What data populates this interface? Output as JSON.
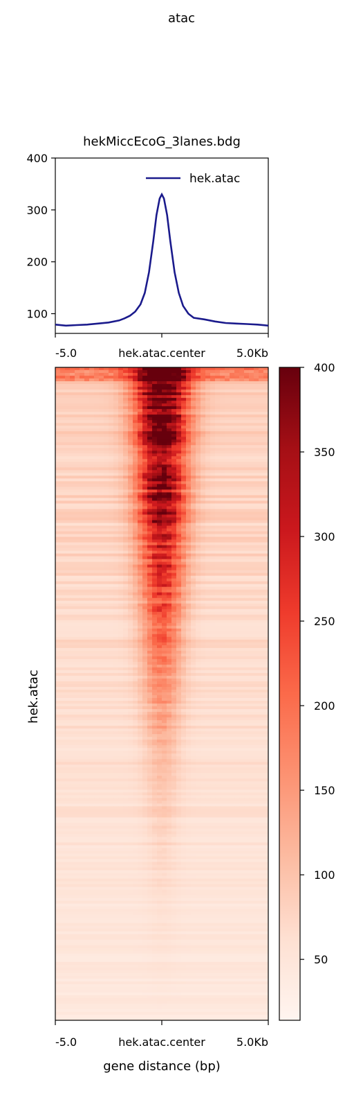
{
  "suptitle": "atac",
  "chart_data": [
    {
      "type": "line",
      "title": "hekMiccEcoG_3lanes.bdg",
      "xlabel": "",
      "ylabel": "",
      "ylim": [
        62,
        400
      ],
      "yticks": [
        100,
        200,
        300,
        400
      ],
      "xticks": [
        "-5.0",
        "hek.atac.center",
        "5.0Kb"
      ],
      "xlim": [
        -5000,
        5000
      ],
      "legend_position": "top-right",
      "series": [
        {
          "name": "hek.atac",
          "color": "#1a1a8c",
          "x": [
            -5000,
            -4500,
            -4000,
            -3500,
            -3000,
            -2500,
            -2000,
            -1750,
            -1500,
            -1250,
            -1000,
            -800,
            -600,
            -400,
            -250,
            -100,
            0,
            100,
            250,
            400,
            600,
            800,
            1000,
            1250,
            1500,
            2000,
            2500,
            3000,
            3500,
            4000,
            4500,
            5000
          ],
          "values": [
            79,
            77,
            78,
            79,
            81,
            83,
            87,
            91,
            96,
            104,
            118,
            140,
            180,
            240,
            290,
            322,
            330,
            322,
            290,
            240,
            180,
            140,
            115,
            100,
            92,
            89,
            85,
            82,
            81,
            80,
            79,
            77
          ]
        }
      ]
    },
    {
      "type": "heatmap",
      "title": "",
      "ylabel": "hek.atac",
      "xlabel": "gene distance (bp)",
      "xticks": [
        "-5.0",
        "hek.atac.center",
        "5.0Kb"
      ],
      "colormap": "Reds",
      "colorbar": {
        "min": 14,
        "max": 400,
        "ticks": [
          50,
          100,
          150,
          200,
          250,
          300,
          350,
          400
        ]
      },
      "description_rows_sorted": "descending signal, strongest at center"
    }
  ]
}
